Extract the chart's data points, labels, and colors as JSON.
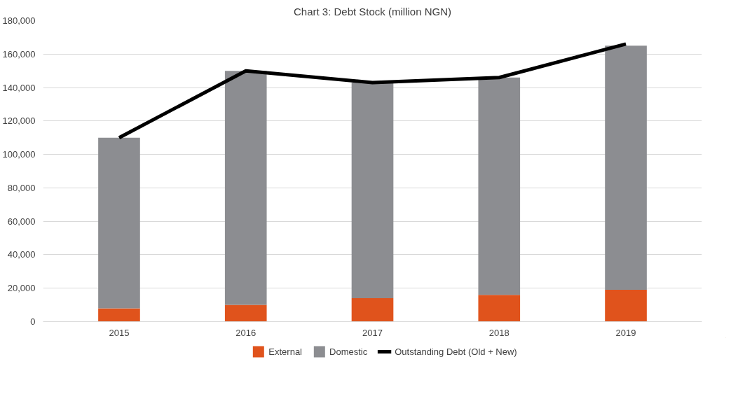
{
  "chart_data": {
    "type": "bar",
    "title": "Chart 3: Debt Stock (million NGN)",
    "categories": [
      "2015",
      "2016",
      "2017",
      "2018",
      "2019"
    ],
    "stacked": true,
    "series": [
      {
        "name": "External",
        "color": "#e0531c",
        "values": [
          8000,
          10000,
          14000,
          16000,
          19000
        ]
      },
      {
        "name": "Domestic",
        "color": "#8c8d91",
        "values": [
          102000,
          140000,
          129000,
          130000,
          146000
        ]
      },
      {
        "name": "Outstanding Debt (Old + New)",
        "type": "line",
        "color": "#000000",
        "values": [
          110000,
          150000,
          143000,
          146000,
          166000
        ]
      }
    ],
    "ylim": [
      0,
      180000
    ],
    "yticks": [
      {
        "value": 0,
        "label": "0"
      },
      {
        "value": 20000,
        "label": "20,000"
      },
      {
        "value": 40000,
        "label": "40,000"
      },
      {
        "value": 60000,
        "label": "60,000"
      },
      {
        "value": 80000,
        "label": "80,000"
      },
      {
        "value": 100000,
        "label": "100,000"
      },
      {
        "value": 120000,
        "label": "120,000"
      },
      {
        "value": 140000,
        "label": "140,000"
      },
      {
        "value": 160000,
        "label": "160,000"
      },
      {
        "value": 180000,
        "label": "180,000"
      }
    ],
    "grid": "y",
    "legend": "bottom"
  }
}
